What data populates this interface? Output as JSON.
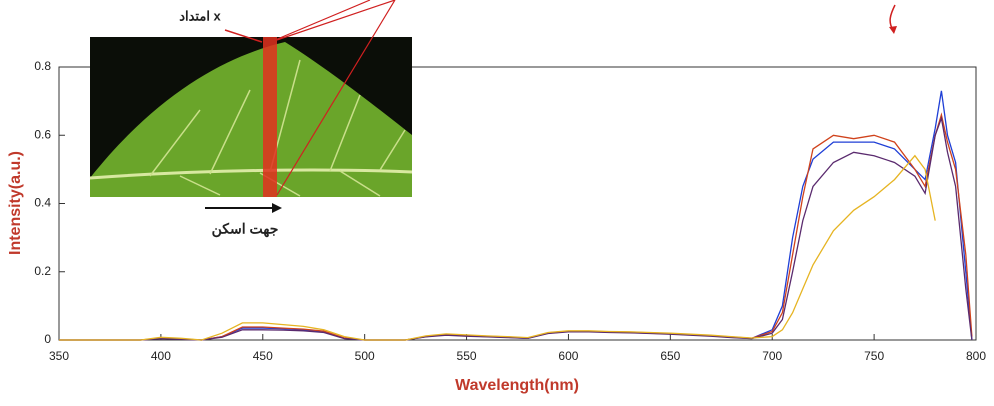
{
  "chart_data": {
    "type": "line",
    "x_label": "Wavelength(nm)",
    "y_label": "Intensity(a.u.)",
    "annotations": [
      "امتداد x",
      "جهت اسکن"
    ],
    "xlim": [
      350,
      800
    ],
    "xticks": [
      350,
      400,
      450,
      500,
      550,
      600,
      650,
      700,
      750,
      800
    ],
    "ylim": [
      0,
      0.8
    ],
    "yticks": [
      0,
      0.2,
      0.4,
      0.6,
      0.8
    ],
    "x": [
      350,
      360,
      370,
      380,
      390,
      400,
      410,
      420,
      430,
      440,
      450,
      460,
      470,
      480,
      490,
      500,
      510,
      520,
      530,
      540,
      550,
      560,
      570,
      580,
      590,
      600,
      610,
      620,
      630,
      640,
      650,
      660,
      670,
      680,
      690,
      700,
      705,
      710,
      715,
      720,
      730,
      740,
      750,
      760,
      770,
      775,
      780,
      783,
      786,
      790,
      795,
      798
    ],
    "series": [
      {
        "name": "blue",
        "color": "#1f3fd6",
        "values": [
          0,
          0,
          0,
          0,
          0,
          0.005,
          0.003,
          0,
          0.01,
          0.035,
          0.035,
          0.033,
          0.03,
          0.025,
          0.005,
          0,
          0,
          0,
          0.01,
          0.015,
          0.012,
          0.01,
          0.008,
          0.005,
          0.02,
          0.025,
          0.025,
          0.023,
          0.022,
          0.02,
          0.018,
          0.015,
          0.012,
          0.008,
          0.005,
          0.03,
          0.1,
          0.3,
          0.45,
          0.53,
          0.58,
          0.58,
          0.58,
          0.56,
          0.5,
          0.47,
          0.62,
          0.73,
          0.6,
          0.52,
          0.2,
          0
        ]
      },
      {
        "name": "red",
        "color": "#d0421b",
        "values": [
          0,
          0,
          0,
          0,
          0,
          0.005,
          0.003,
          0,
          0.01,
          0.038,
          0.038,
          0.035,
          0.032,
          0.026,
          0.006,
          0,
          0,
          0,
          0.01,
          0.016,
          0.013,
          0.011,
          0.009,
          0.006,
          0.021,
          0.026,
          0.026,
          0.024,
          0.023,
          0.021,
          0.019,
          0.016,
          0.013,
          0.009,
          0.005,
          0.025,
          0.08,
          0.25,
          0.42,
          0.56,
          0.6,
          0.59,
          0.6,
          0.58,
          0.5,
          0.45,
          0.6,
          0.66,
          0.58,
          0.5,
          0.25,
          0.01
        ]
      },
      {
        "name": "purple",
        "color": "#5a2a6e",
        "values": [
          0,
          0,
          0,
          0,
          0,
          0.004,
          0.002,
          0,
          0.008,
          0.03,
          0.03,
          0.029,
          0.027,
          0.022,
          0.004,
          0,
          0,
          0,
          0.009,
          0.014,
          0.011,
          0.009,
          0.007,
          0.005,
          0.019,
          0.024,
          0.024,
          0.022,
          0.021,
          0.019,
          0.017,
          0.014,
          0.011,
          0.007,
          0.004,
          0.02,
          0.06,
          0.2,
          0.35,
          0.45,
          0.52,
          0.55,
          0.54,
          0.52,
          0.48,
          0.43,
          0.6,
          0.65,
          0.55,
          0.45,
          0.15,
          0
        ]
      },
      {
        "name": "yellow",
        "color": "#e6b422",
        "values": [
          0,
          0,
          0,
          0,
          0,
          0.008,
          0.005,
          0,
          0.02,
          0.05,
          0.05,
          0.045,
          0.04,
          0.03,
          0.01,
          0,
          0,
          0,
          0.012,
          0.018,
          0.015,
          0.012,
          0.01,
          0.007,
          0.022,
          0.027,
          0.027,
          0.025,
          0.024,
          0.022,
          0.02,
          0.017,
          0.014,
          0.01,
          0.006,
          0.01,
          0.03,
          0.08,
          0.15,
          0.22,
          0.32,
          0.38,
          0.42,
          0.47,
          0.54,
          0.5,
          0.35,
          null,
          null,
          null,
          null,
          null
        ]
      }
    ]
  }
}
